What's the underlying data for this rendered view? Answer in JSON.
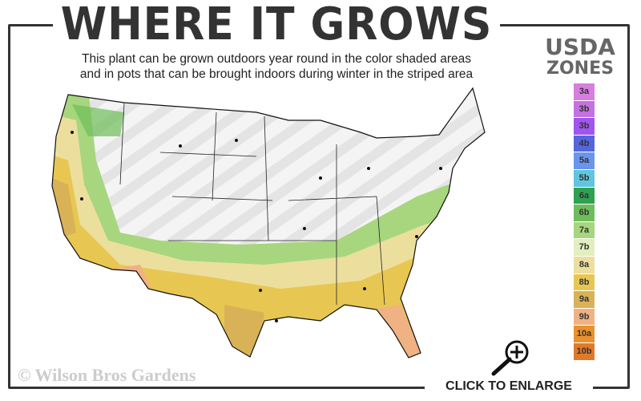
{
  "title": "WHERE IT GROWS",
  "subtitle_lines": [
    "This plant can be grown outdoors year round in the color shaded areas",
    "and in pots that can be brought indoors during winter in the striped area"
  ],
  "legend": {
    "title_line1": "USDA",
    "title_line2": "ZONES",
    "zones": [
      {
        "label": "3a",
        "color": "#d77fe0"
      },
      {
        "label": "3b",
        "color": "#c472e0"
      },
      {
        "label": "3b",
        "color": "#a055ef"
      },
      {
        "label": "4b",
        "color": "#5566dd"
      },
      {
        "label": "5a",
        "color": "#6a95ee"
      },
      {
        "label": "5b",
        "color": "#5fc6de"
      },
      {
        "label": "6a",
        "color": "#2fa152"
      },
      {
        "label": "6b",
        "color": "#6dbd5a"
      },
      {
        "label": "7a",
        "color": "#a7d67e"
      },
      {
        "label": "7b",
        "color": "#e2eebf"
      },
      {
        "label": "8a",
        "color": "#ecdf9e"
      },
      {
        "label": "8b",
        "color": "#e7c752"
      },
      {
        "label": "9a",
        "color": "#d9b257"
      },
      {
        "label": "9b",
        "color": "#f0b282"
      },
      {
        "label": "10a",
        "color": "#e8912f"
      },
      {
        "label": "10b",
        "color": "#e07a2a"
      }
    ]
  },
  "copyright": "© Wilson Bros Gardens",
  "enlarge_label": "CLICK TO ENLARGE",
  "icons": {
    "enlarge": "magnifier-plus-icon"
  }
}
